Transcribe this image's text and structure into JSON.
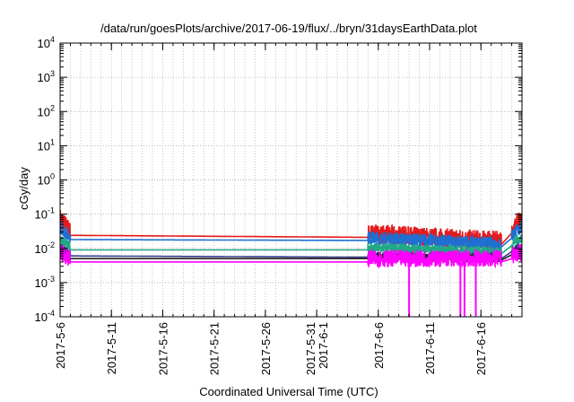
{
  "chart_data": {
    "type": "line",
    "title": "/data/run/goesPlots/archive/2017-06-19/flux/../bryn/31daysEarthData.plot",
    "xlabel": "Coordinated Universal Time (UTC)",
    "ylabel": "cGy/day",
    "y_scale": "log",
    "ylim": [
      0.0001,
      10000
    ],
    "y_ticks": [
      {
        "exp": -4,
        "label_base": "10",
        "label_exp": "-4"
      },
      {
        "exp": -3,
        "label_base": "10",
        "label_exp": "-3"
      },
      {
        "exp": -2,
        "label_base": "10",
        "label_exp": "-2"
      },
      {
        "exp": -1,
        "label_base": "10",
        "label_exp": "-1"
      },
      {
        "exp": 0,
        "label_base": "10",
        "label_exp": "0"
      },
      {
        "exp": 1,
        "label_base": "10",
        "label_exp": "1"
      },
      {
        "exp": 2,
        "label_base": "10",
        "label_exp": "2"
      },
      {
        "exp": 3,
        "label_base": "10",
        "label_exp": "3"
      },
      {
        "exp": 4,
        "label_base": "10",
        "label_exp": "4"
      }
    ],
    "xlim": [
      "2017-05-06",
      "2017-06-20"
    ],
    "x_ticks": [
      {
        "date": "2017-05-06",
        "lines": [
          "2017-5-6"
        ]
      },
      {
        "date": "2017-05-11",
        "lines": [
          "2017-5-11"
        ]
      },
      {
        "date": "2017-05-16",
        "lines": [
          "2017-5-16"
        ]
      },
      {
        "date": "2017-05-21",
        "lines": [
          "2017-5-21"
        ]
      },
      {
        "date": "2017-05-26",
        "lines": [
          "2017-5-26"
        ]
      },
      {
        "date": "2017-05-31",
        "lines": [
          "2017-5-31",
          "2017-6-1"
        ]
      },
      {
        "date": "2017-06-06",
        "lines": [
          "2017-6-6"
        ]
      },
      {
        "date": "2017-06-11",
        "lines": [
          "2017-6-11"
        ]
      },
      {
        "date": "2017-06-16",
        "lines": [
          "2017-6-16"
        ]
      }
    ],
    "grid": true,
    "data_gaps": [
      [
        "2017-05-07",
        "2017-06-05"
      ],
      [
        "2017-06-18",
        "2017-06-19"
      ]
    ],
    "series": [
      {
        "color": "#e41a1c",
        "x": [
          "2017-05-06",
          "2017-05-07",
          "2017-06-05",
          "2017-06-18",
          "2017-06-19",
          "2017-06-20"
        ],
        "y": [
          0.06,
          0.024,
          0.021,
          0.013,
          0.028,
          0.06
        ],
        "fluct": 0.28
      },
      {
        "color": "#1f6fd1",
        "x": [
          "2017-05-06",
          "2017-05-07",
          "2017-06-05",
          "2017-06-18",
          "2017-06-19",
          "2017-06-20"
        ],
        "y": [
          0.035,
          0.018,
          0.017,
          0.011,
          0.02,
          0.035
        ],
        "fluct": 0.2
      },
      {
        "color": "#22a884",
        "x": [
          "2017-05-06",
          "2017-05-07",
          "2017-06-05",
          "2017-06-18",
          "2017-06-19",
          "2017-06-20"
        ],
        "y": [
          0.018,
          0.009,
          0.009,
          0.007,
          0.012,
          0.018
        ],
        "fluct": 0.15
      },
      {
        "color": "#3a3a8a",
        "x": [
          "2017-05-06",
          "2017-05-07",
          "2017-06-05",
          "2017-06-18",
          "2017-06-19",
          "2017-06-20"
        ],
        "y": [
          0.01,
          0.006,
          0.0055,
          0.005,
          0.008,
          0.01
        ],
        "fluct": 0.12
      },
      {
        "color": "#222222",
        "x": [
          "2017-05-06",
          "2017-05-07",
          "2017-06-05",
          "2017-06-18",
          "2017-06-19",
          "2017-06-20"
        ],
        "y": [
          0.008,
          0.005,
          0.005,
          0.0045,
          0.0065,
          0.008
        ],
        "fluct": 0.12
      },
      {
        "color": "#ff00ff",
        "x": [
          "2017-05-06",
          "2017-05-07",
          "2017-06-05",
          "2017-06-18",
          "2017-06-19",
          "2017-06-20"
        ],
        "y": [
          0.006,
          0.004,
          0.004,
          0.004,
          0.005,
          0.006
        ],
        "fluct": 0.25,
        "dips": [
          {
            "date": "2017-06-09",
            "y": 0.0001
          },
          {
            "date": "2017-06-14",
            "y": 0.0001
          },
          {
            "date": "2017-06-14.4",
            "y": 0.0001
          },
          {
            "date": "2017-06-15.5",
            "y": 0.0001
          }
        ]
      }
    ]
  }
}
